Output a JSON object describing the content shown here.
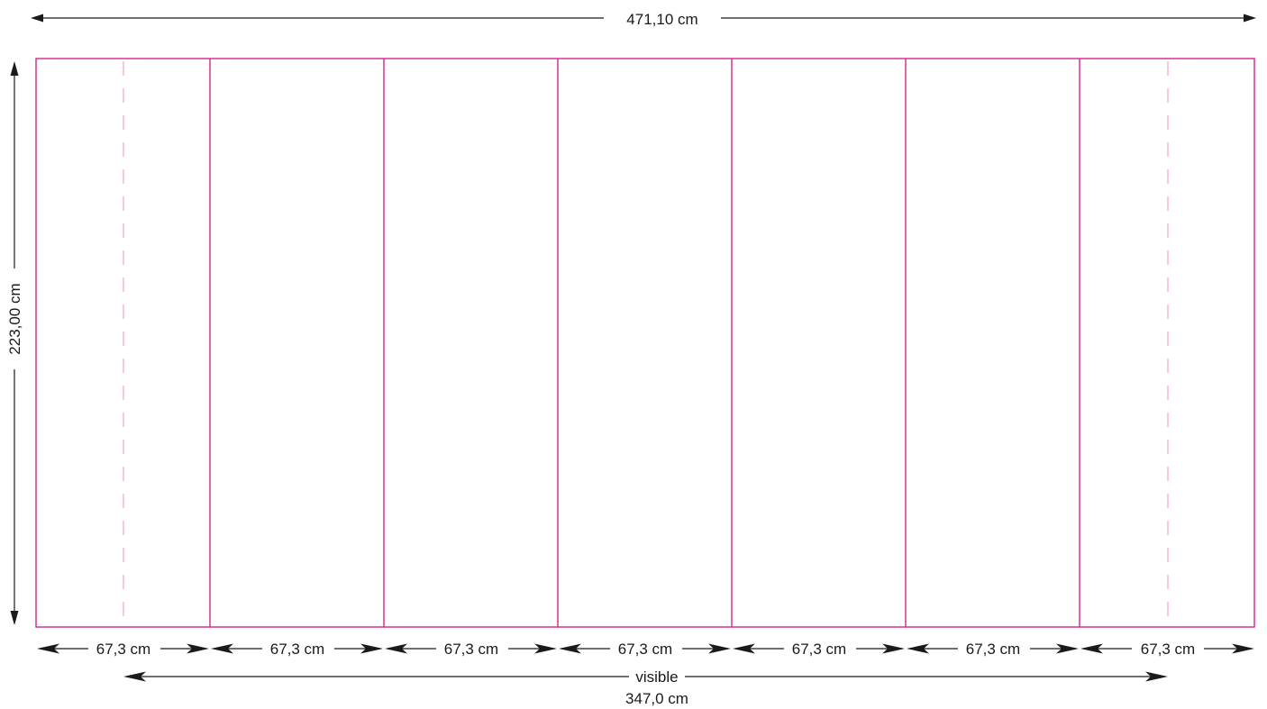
{
  "dimensions": {
    "total_width": "471,10 cm",
    "total_height": "223,00 cm",
    "visible_label": "visible",
    "visible_width": "347,0 cm",
    "panel_widths": [
      "67,3 cm",
      "67,3 cm",
      "67,3 cm",
      "67,3 cm",
      "67,3 cm",
      "67,3 cm",
      "67,3 cm"
    ]
  },
  "colors": {
    "panel_line": "#d6238a",
    "guide_line": "#f2a3c6",
    "dimension_line": "#1a1a1a"
  }
}
